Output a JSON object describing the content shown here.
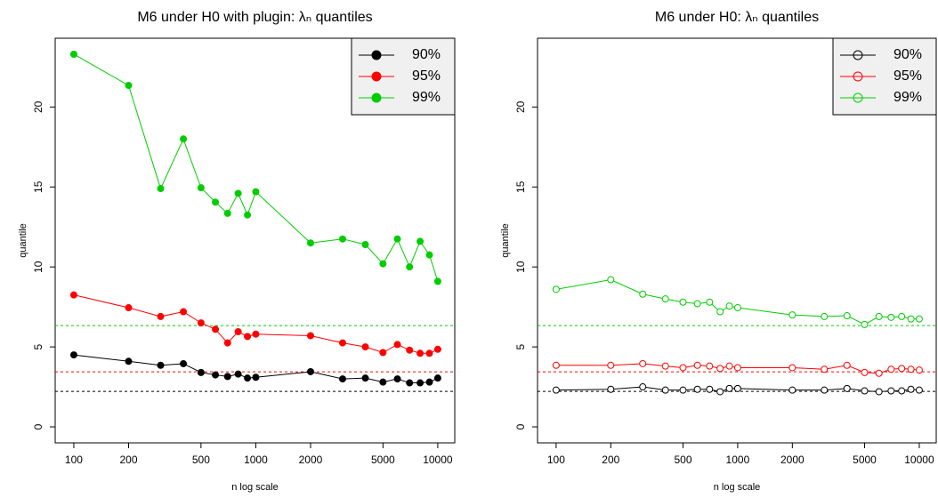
{
  "chart_data": [
    {
      "type": "line",
      "title": "M6 under H0 with plugin: λₙ quantiles",
      "x_label": "n log scale",
      "y_label": "quantile",
      "x": [
        100,
        200,
        300,
        400,
        500,
        600,
        700,
        800,
        900,
        1000,
        2000,
        3000,
        4000,
        5000,
        6000,
        7000,
        8000,
        9000,
        10000
      ],
      "xscale": "log",
      "xlim": [
        79,
        12400
      ],
      "xticks": [
        100,
        200,
        500,
        1000,
        2000,
        5000,
        10000
      ],
      "ylim": [
        -1.0,
        24.3
      ],
      "yticks": [
        0,
        5,
        10,
        15,
        20
      ],
      "grid": false,
      "legend": "top-right",
      "marker_fill": true,
      "series": [
        {
          "name": "90%",
          "color": "#000000",
          "values": [
            4.5,
            4.1,
            3.85,
            3.95,
            3.4,
            3.25,
            3.15,
            3.3,
            3.05,
            3.1,
            3.45,
            3.0,
            3.05,
            2.8,
            3.0,
            2.75,
            2.75,
            2.8,
            3.05
          ]
        },
        {
          "name": "95%",
          "color": "#ff0000",
          "values": [
            8.25,
            7.45,
            6.9,
            7.2,
            6.5,
            6.1,
            5.25,
            5.95,
            5.65,
            5.8,
            5.7,
            5.25,
            5.0,
            4.65,
            5.15,
            4.8,
            4.6,
            4.6,
            4.85
          ]
        },
        {
          "name": "99%",
          "color": "#00cd00",
          "values": [
            23.3,
            21.35,
            14.9,
            18.0,
            14.95,
            14.05,
            13.35,
            14.6,
            13.25,
            14.7,
            11.5,
            11.75,
            11.4,
            10.2,
            11.75,
            10.0,
            11.6,
            10.75,
            9.1
          ]
        }
      ],
      "hlines": [
        {
          "value": 2.22,
          "color": "#000000"
        },
        {
          "value": 3.44,
          "color": "#ff0000"
        },
        {
          "value": 6.33,
          "color": "#00cd00"
        }
      ]
    },
    {
      "type": "line",
      "title": "M6 under H0: λₙ quantiles",
      "x_label": "n log scale",
      "y_label": "quantile",
      "x": [
        100,
        200,
        300,
        400,
        500,
        600,
        700,
        800,
        900,
        1000,
        2000,
        3000,
        4000,
        5000,
        6000,
        7000,
        8000,
        9000,
        10000
      ],
      "xscale": "log",
      "xlim": [
        79,
        12400
      ],
      "xticks": [
        100,
        200,
        500,
        1000,
        2000,
        5000,
        10000
      ],
      "ylim": [
        -1.0,
        24.3
      ],
      "yticks": [
        0,
        5,
        10,
        15,
        20
      ],
      "grid": false,
      "legend": "top-right",
      "marker_fill": false,
      "series": [
        {
          "name": "90%",
          "color": "#000000",
          "values": [
            2.3,
            2.35,
            2.5,
            2.3,
            2.3,
            2.35,
            2.35,
            2.2,
            2.4,
            2.4,
            2.3,
            2.3,
            2.4,
            2.25,
            2.2,
            2.25,
            2.25,
            2.35,
            2.3
          ]
        },
        {
          "name": "95%",
          "color": "#ff0000",
          "values": [
            3.85,
            3.85,
            3.95,
            3.8,
            3.7,
            3.85,
            3.8,
            3.65,
            3.8,
            3.7,
            3.7,
            3.6,
            3.85,
            3.4,
            3.35,
            3.6,
            3.65,
            3.6,
            3.55
          ]
        },
        {
          "name": "99%",
          "color": "#00cd00",
          "values": [
            8.6,
            9.2,
            8.3,
            8.0,
            7.8,
            7.7,
            7.8,
            7.2,
            7.55,
            7.45,
            7.0,
            6.9,
            6.95,
            6.4,
            6.9,
            6.85,
            6.9,
            6.75,
            6.75
          ]
        }
      ],
      "hlines": [
        {
          "value": 2.22,
          "color": "#000000"
        },
        {
          "value": 3.44,
          "color": "#ff0000"
        },
        {
          "value": 6.33,
          "color": "#00cd00"
        }
      ]
    }
  ]
}
